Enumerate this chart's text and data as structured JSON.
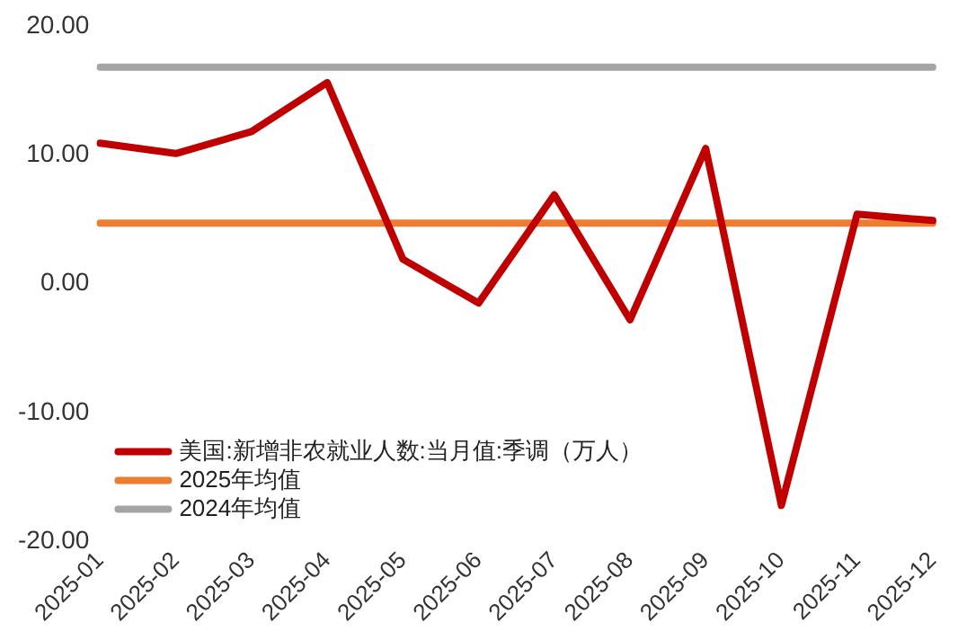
{
  "chart_data": {
    "type": "line",
    "categories": [
      "2025-01",
      "2025-02",
      "2025-03",
      "2025-04",
      "2025-05",
      "2025-06",
      "2025-07",
      "2025-08",
      "2025-09",
      "2025-10",
      "2025-11",
      "2025-12"
    ],
    "series": [
      {
        "name": "美国:新增非农就业人数:当月值:季调（万人）",
        "color": "#c00000",
        "values": [
          10.9,
          10.1,
          11.8,
          15.6,
          1.9,
          -1.5,
          6.9,
          -2.8,
          10.5,
          -17.2,
          5.4,
          4.9
        ]
      },
      {
        "name": "2025年均值",
        "color": "#ed7d31",
        "values": [
          4.7,
          4.7,
          4.7,
          4.7,
          4.7,
          4.7,
          4.7,
          4.7,
          4.7,
          4.7,
          4.7,
          4.7
        ]
      },
      {
        "name": "2024年均值",
        "color": "#a5a5a5",
        "values": [
          16.8,
          16.8,
          16.8,
          16.8,
          16.8,
          16.8,
          16.8,
          16.8,
          16.8,
          16.8,
          16.8,
          16.8
        ]
      }
    ],
    "ylim": [
      -20,
      20
    ],
    "yticks": [
      {
        "value": -20,
        "label": "-20.00"
      },
      {
        "value": -10,
        "label": "-10.00"
      },
      {
        "value": 0,
        "label": "0.00"
      },
      {
        "value": 10,
        "label": "10.00"
      },
      {
        "value": 20,
        "label": "20.00"
      }
    ],
    "grid": false,
    "legend": "bottom left",
    "marker": "none",
    "line_style": "solid"
  }
}
